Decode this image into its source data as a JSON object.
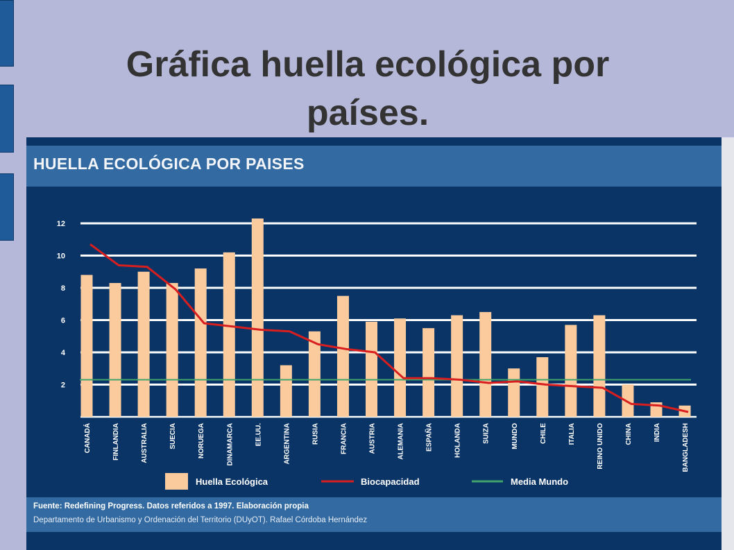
{
  "slide": {
    "title": "Gráfica huella ecológica por países."
  },
  "colors": {
    "background": "#b6b8d9",
    "panel": "#0a3466",
    "header": "#326aa1",
    "bar": "#fbcb9d",
    "biocapacity": "#d81e1e",
    "world_average": "#3fa56a",
    "grid": "#ffffff"
  },
  "chart_data": {
    "type": "bar",
    "title": "HUELLA ECOLÓGICA POR PAISES",
    "categories": [
      "CANADÁ",
      "FINLANDIA",
      "AUSTRALIA",
      "SUECIA",
      "NORUEGA",
      "DINAMARCA",
      "EE.UU.",
      "ARGENTINA",
      "RUSIA",
      "FRANCIA",
      "AUSTRIA",
      "ALEMANIA",
      "ESPAÑA",
      "HOLANDA",
      "SUIZA",
      "MUNDO",
      "CHILE",
      "ITALIA",
      "REINO UNIDO",
      "CHINA",
      "INDIA",
      "BANGLADESH"
    ],
    "series": [
      {
        "name": "Huella Ecológica",
        "kind": "bar",
        "color": "#fbcb9d",
        "values": [
          8.8,
          8.3,
          9.0,
          8.3,
          9.2,
          10.2,
          12.3,
          3.2,
          5.3,
          7.5,
          5.9,
          6.1,
          5.5,
          6.3,
          6.5,
          3.0,
          3.7,
          5.7,
          6.3,
          2.0,
          0.9,
          0.7
        ]
      },
      {
        "name": "Biocapacidad",
        "kind": "line",
        "color": "#d81e1e",
        "values": [
          10.7,
          9.4,
          9.3,
          7.9,
          5.8,
          5.6,
          5.4,
          5.3,
          4.5,
          4.2,
          4.0,
          2.4,
          2.4,
          2.3,
          2.1,
          2.2,
          2.0,
          1.9,
          1.8,
          0.8,
          0.7,
          0.3
        ]
      },
      {
        "name": "Media Mundo",
        "kind": "line",
        "color": "#3fa56a",
        "values": [
          2.3,
          2.3,
          2.3,
          2.3,
          2.3,
          2.3,
          2.3,
          2.3,
          2.3,
          2.3,
          2.3,
          2.3,
          2.3,
          2.3,
          2.3,
          2.3,
          2.3,
          2.3,
          2.3,
          2.3,
          2.3,
          2.3
        ]
      }
    ],
    "yticks": [
      2,
      4,
      6,
      8,
      10,
      12
    ],
    "ylim": [
      0,
      12.5
    ],
    "grid": true,
    "legend_position": "bottom",
    "source": "Fuente: Redefining Progress. Datos referidos a 1997. Elaboración propia",
    "credit": "Departamento de Urbanismo y Ordenación del Territorio (DUyOT). Rafael Córdoba Hernández"
  }
}
